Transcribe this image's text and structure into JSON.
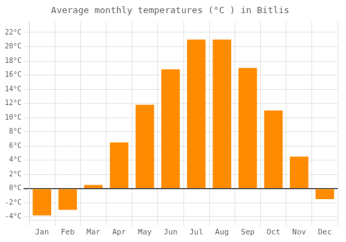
{
  "chart_data": {
    "type": "bar",
    "title": "Average monthly temperatures (°C ) in Bitlis",
    "categories": [
      "Jan",
      "Feb",
      "Mar",
      "Apr",
      "May",
      "Jun",
      "Jul",
      "Aug",
      "Sep",
      "Oct",
      "Nov",
      "Dec"
    ],
    "values": [
      -3.8,
      -3.0,
      0.5,
      6.5,
      11.8,
      16.8,
      21.0,
      21.0,
      17.0,
      11.0,
      4.5,
      -1.5
    ],
    "color": "#FF8C00",
    "ylim": [
      -4.5,
      23.5
    ],
    "yticks": [
      {
        "value": -4,
        "label": "-4°C"
      },
      {
        "value": -2,
        "label": "-2°C"
      },
      {
        "value": 0,
        "label": "0°C"
      },
      {
        "value": 2,
        "label": "2°C"
      },
      {
        "value": 4,
        "label": "4°C"
      },
      {
        "value": 6,
        "label": "6°C"
      },
      {
        "value": 8,
        "label": "8°C"
      },
      {
        "value": 10,
        "label": "10°C"
      },
      {
        "value": 12,
        "label": "12°C"
      },
      {
        "value": 14,
        "label": "14°C"
      },
      {
        "value": 16,
        "label": "16°C"
      },
      {
        "value": 18,
        "label": "18°C"
      },
      {
        "value": 20,
        "label": "20°C"
      },
      {
        "value": 22,
        "label": "22°C"
      }
    ],
    "grid": true
  }
}
